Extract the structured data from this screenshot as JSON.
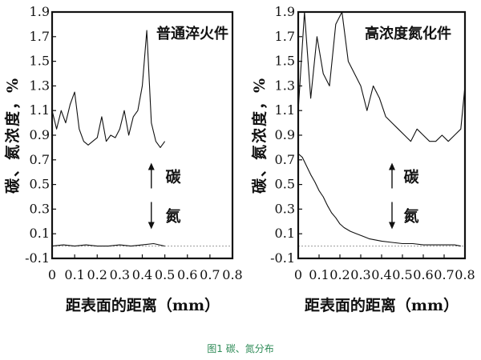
{
  "figure_caption": "图1 碳、氮分布",
  "chart_data": [
    {
      "type": "line",
      "title": "普通淬火件",
      "ylabel": "碳、氮浓度，%",
      "xlabel": "距表面的距离（mm）",
      "xlim": [
        0,
        0.8
      ],
      "ylim": [
        -0.1,
        1.9
      ],
      "x_ticks": [
        "0",
        "0.1",
        "0.2",
        "0.3",
        "0.4",
        "0.5",
        "0.6",
        "0.7",
        "0.8"
      ],
      "y_ticks": [
        "-0.1",
        "0.1",
        "0.3",
        "0.5",
        "0.7",
        "0.9",
        "1.1",
        "1.3",
        "1.5",
        "1.7",
        "1.9"
      ],
      "annotations": [
        {
          "text": "碳",
          "arrow": "up",
          "x": 0.44,
          "y": 0.65
        },
        {
          "text": "氮",
          "arrow": "down",
          "x": 0.44,
          "y": 0.15
        }
      ],
      "series": [
        {
          "name": "碳",
          "x": [
            0.0,
            0.02,
            0.04,
            0.06,
            0.08,
            0.1,
            0.12,
            0.14,
            0.16,
            0.18,
            0.2,
            0.22,
            0.24,
            0.26,
            0.28,
            0.3,
            0.32,
            0.34,
            0.36,
            0.38,
            0.4,
            0.42,
            0.44,
            0.46,
            0.48,
            0.5
          ],
          "y": [
            1.1,
            0.95,
            1.1,
            1.0,
            1.15,
            1.25,
            0.95,
            0.85,
            0.82,
            0.85,
            0.88,
            1.05,
            0.85,
            0.9,
            0.88,
            0.95,
            1.1,
            0.9,
            1.05,
            1.1,
            1.3,
            1.75,
            1.0,
            0.85,
            0.8,
            0.85
          ]
        },
        {
          "name": "氮",
          "x": [
            0.0,
            0.05,
            0.1,
            0.15,
            0.2,
            0.25,
            0.3,
            0.35,
            0.4,
            0.45,
            0.5
          ],
          "y": [
            0.0,
            0.01,
            0.0,
            0.01,
            0.0,
            0.0,
            0.01,
            0.0,
            0.01,
            0.02,
            0.0
          ]
        }
      ]
    },
    {
      "type": "line",
      "title": "高浓度氮化件",
      "ylabel": "碳、氮浓度，%",
      "xlabel": "距表面的距离（mm）",
      "xlim": [
        0,
        0.8
      ],
      "ylim": [
        -0.1,
        1.9
      ],
      "x_ticks": [
        "0",
        "0.1",
        "0.2",
        "0.3",
        "0.4",
        "0.5",
        "0.6",
        "0.7",
        "0.8"
      ],
      "y_ticks": [
        "-0.1",
        "0.1",
        "0.3",
        "0.5",
        "0.7",
        "0.9",
        "1.1",
        "1.3",
        "1.5",
        "1.7",
        "1.9"
      ],
      "annotations": [
        {
          "text": "碳",
          "arrow": "up",
          "x": 0.45,
          "y": 0.65
        },
        {
          "text": "氮",
          "arrow": "down",
          "x": 0.45,
          "y": 0.15
        }
      ],
      "series": [
        {
          "name": "碳",
          "x": [
            0.0,
            0.03,
            0.06,
            0.09,
            0.12,
            0.15,
            0.18,
            0.21,
            0.24,
            0.27,
            0.3,
            0.33,
            0.36,
            0.39,
            0.42,
            0.45,
            0.48,
            0.51,
            0.54,
            0.57,
            0.6,
            0.63,
            0.66,
            0.69,
            0.72,
            0.75,
            0.78,
            0.8
          ],
          "y": [
            1.1,
            1.9,
            1.2,
            1.7,
            1.4,
            1.3,
            1.8,
            1.9,
            1.5,
            1.4,
            1.3,
            1.1,
            1.3,
            1.2,
            1.05,
            1.0,
            0.95,
            0.9,
            0.85,
            0.95,
            0.9,
            0.85,
            0.85,
            0.9,
            0.85,
            0.9,
            0.95,
            1.3
          ]
        },
        {
          "name": "氮",
          "x": [
            0.0,
            0.02,
            0.04,
            0.06,
            0.08,
            0.1,
            0.12,
            0.14,
            0.16,
            0.18,
            0.2,
            0.22,
            0.25,
            0.28,
            0.31,
            0.34,
            0.37,
            0.4,
            0.45,
            0.5,
            0.55,
            0.6,
            0.65,
            0.7,
            0.75,
            0.78
          ],
          "y": [
            0.75,
            0.72,
            0.65,
            0.58,
            0.52,
            0.45,
            0.4,
            0.33,
            0.27,
            0.23,
            0.18,
            0.15,
            0.12,
            0.1,
            0.08,
            0.06,
            0.05,
            0.04,
            0.03,
            0.02,
            0.02,
            0.01,
            0.01,
            0.01,
            0.01,
            0.0
          ]
        }
      ]
    }
  ]
}
